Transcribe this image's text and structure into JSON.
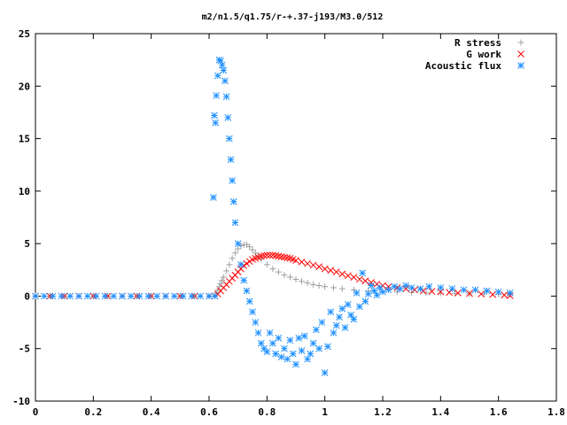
{
  "chart_data": {
    "type": "scatter",
    "title": "m2/n1.5/q1.75/r-+.37-j193/M3.0/512",
    "xlabel": "",
    "ylabel": "",
    "xlim": [
      0,
      1.8
    ],
    "ylim": [
      -10,
      25
    ],
    "xticks": [
      "0",
      "0.2",
      "0.4",
      "0.6",
      "0.8",
      "1",
      "1.2",
      "1.4",
      "1.6",
      "1.8"
    ],
    "yticks": [
      "-10",
      "-5",
      "0",
      "5",
      "10",
      "15",
      "20",
      "25"
    ],
    "grid": false,
    "legend_position": "top-right",
    "series": [
      {
        "name": "R stress",
        "marker": "plus",
        "color": "#a0a0a0",
        "x": [
          0.0,
          0.05,
          0.1,
          0.15,
          0.2,
          0.25,
          0.3,
          0.35,
          0.4,
          0.45,
          0.5,
          0.55,
          0.6,
          0.62,
          0.625,
          0.63,
          0.635,
          0.64,
          0.645,
          0.65,
          0.66,
          0.67,
          0.68,
          0.69,
          0.7,
          0.71,
          0.72,
          0.73,
          0.74,
          0.75,
          0.76,
          0.77,
          0.78,
          0.8,
          0.82,
          0.84,
          0.86,
          0.88,
          0.9,
          0.92,
          0.94,
          0.96,
          0.98,
          1.0,
          1.03,
          1.06,
          1.1,
          1.15,
          1.2,
          1.25,
          1.3,
          1.35,
          1.4,
          1.45,
          1.5,
          1.55,
          1.6,
          1.64
        ],
        "y": [
          0,
          0,
          0,
          0,
          0,
          0,
          0,
          0,
          0,
          0,
          0,
          0,
          0,
          0,
          0.3,
          0.6,
          0.9,
          1.2,
          1.5,
          1.8,
          2.4,
          3.0,
          3.6,
          4.1,
          4.5,
          4.8,
          4.9,
          4.9,
          4.7,
          4.4,
          4.1,
          3.8,
          3.5,
          3.0,
          2.6,
          2.3,
          2.0,
          1.8,
          1.6,
          1.4,
          1.25,
          1.1,
          1.0,
          0.9,
          0.8,
          0.7,
          0.6,
          0.5,
          0.45,
          0.4,
          0.35,
          0.3,
          0.28,
          0.25,
          0.22,
          0.2,
          0.18,
          0.15
        ]
      },
      {
        "name": "G work",
        "marker": "cross",
        "color": "#ff0000",
        "x": [
          0.0,
          0.05,
          0.1,
          0.15,
          0.2,
          0.25,
          0.3,
          0.35,
          0.4,
          0.45,
          0.5,
          0.55,
          0.6,
          0.62,
          0.63,
          0.64,
          0.65,
          0.66,
          0.67,
          0.68,
          0.69,
          0.7,
          0.71,
          0.72,
          0.73,
          0.74,
          0.75,
          0.76,
          0.77,
          0.78,
          0.79,
          0.8,
          0.81,
          0.82,
          0.83,
          0.84,
          0.85,
          0.86,
          0.87,
          0.88,
          0.89,
          0.9,
          0.92,
          0.94,
          0.96,
          0.98,
          1.0,
          1.02,
          1.04,
          1.06,
          1.08,
          1.1,
          1.12,
          1.14,
          1.16,
          1.18,
          1.2,
          1.22,
          1.25,
          1.28,
          1.31,
          1.34,
          1.37,
          1.4,
          1.43,
          1.46,
          1.5,
          1.54,
          1.58,
          1.62,
          1.64
        ],
        "y": [
          0,
          0,
          0,
          0,
          0,
          0,
          0,
          0,
          0,
          0,
          0,
          0,
          0,
          0,
          0.2,
          0.5,
          0.8,
          1.1,
          1.4,
          1.7,
          2.0,
          2.3,
          2.6,
          2.9,
          3.1,
          3.3,
          3.5,
          3.6,
          3.7,
          3.8,
          3.85,
          3.9,
          3.9,
          3.9,
          3.85,
          3.8,
          3.75,
          3.7,
          3.65,
          3.6,
          3.5,
          3.4,
          3.25,
          3.1,
          2.95,
          2.8,
          2.6,
          2.45,
          2.3,
          2.1,
          1.95,
          1.8,
          1.6,
          1.45,
          1.3,
          1.15,
          1.0,
          0.9,
          0.8,
          0.7,
          0.6,
          0.5,
          0.45,
          0.4,
          0.35,
          0.3,
          0.25,
          0.2,
          0.15,
          0.1,
          0.05
        ]
      },
      {
        "name": "Acoustic flux",
        "marker": "star",
        "color": "#1e90ff",
        "x": [
          0.0,
          0.03,
          0.06,
          0.09,
          0.12,
          0.15,
          0.18,
          0.21,
          0.24,
          0.27,
          0.3,
          0.33,
          0.36,
          0.39,
          0.42,
          0.45,
          0.48,
          0.51,
          0.54,
          0.57,
          0.6,
          0.62,
          0.615,
          0.618,
          0.622,
          0.625,
          0.63,
          0.635,
          0.64,
          0.645,
          0.65,
          0.655,
          0.66,
          0.665,
          0.67,
          0.675,
          0.68,
          0.685,
          0.69,
          0.7,
          0.71,
          0.72,
          0.73,
          0.74,
          0.75,
          0.76,
          0.77,
          0.78,
          0.79,
          0.8,
          0.81,
          0.82,
          0.83,
          0.84,
          0.85,
          0.86,
          0.87,
          0.88,
          0.89,
          0.9,
          0.91,
          0.92,
          0.93,
          0.94,
          0.95,
          0.96,
          0.97,
          0.98,
          0.99,
          1.0,
          1.01,
          1.02,
          1.03,
          1.04,
          1.05,
          1.06,
          1.07,
          1.08,
          1.09,
          1.1,
          1.11,
          1.12,
          1.13,
          1.14,
          1.15,
          1.16,
          1.17,
          1.18,
          1.19,
          1.2,
          1.22,
          1.24,
          1.26,
          1.28,
          1.3,
          1.33,
          1.36,
          1.4,
          1.44,
          1.48,
          1.52,
          1.56,
          1.6,
          1.64
        ],
        "y": [
          0,
          0,
          0,
          0,
          0,
          0,
          0,
          0,
          0,
          0,
          0,
          0,
          0,
          0,
          0,
          0,
          0,
          0,
          0,
          0,
          0,
          0,
          9.4,
          17.2,
          16.5,
          19.1,
          21.0,
          22.5,
          22.4,
          22.0,
          21.5,
          20.5,
          19.0,
          17.0,
          15.0,
          13.0,
          11.0,
          9.0,
          7.0,
          5.0,
          3.0,
          1.5,
          0.5,
          -0.5,
          -1.5,
          -2.5,
          -3.5,
          -4.5,
          -5.0,
          -5.3,
          -3.5,
          -4.5,
          -5.5,
          -4.0,
          -5.8,
          -5.0,
          -6.0,
          -4.2,
          -5.5,
          -6.5,
          -4.0,
          -5.2,
          -3.8,
          -6.0,
          -5.5,
          -4.5,
          -3.2,
          -5.0,
          -2.5,
          -7.3,
          -4.8,
          -1.5,
          -3.5,
          -2.8,
          -2.0,
          -1.2,
          -3.0,
          -0.8,
          -1.8,
          -2.2,
          0.3,
          -1.0,
          2.2,
          -0.5,
          0.2,
          1.0,
          0.5,
          0.1,
          0.8,
          0.4,
          0.6,
          0.9,
          0.7,
          1.0,
          0.8,
          0.7,
          0.9,
          0.8,
          0.7,
          0.6,
          0.6,
          0.5,
          0.4,
          0.3
        ]
      }
    ]
  }
}
